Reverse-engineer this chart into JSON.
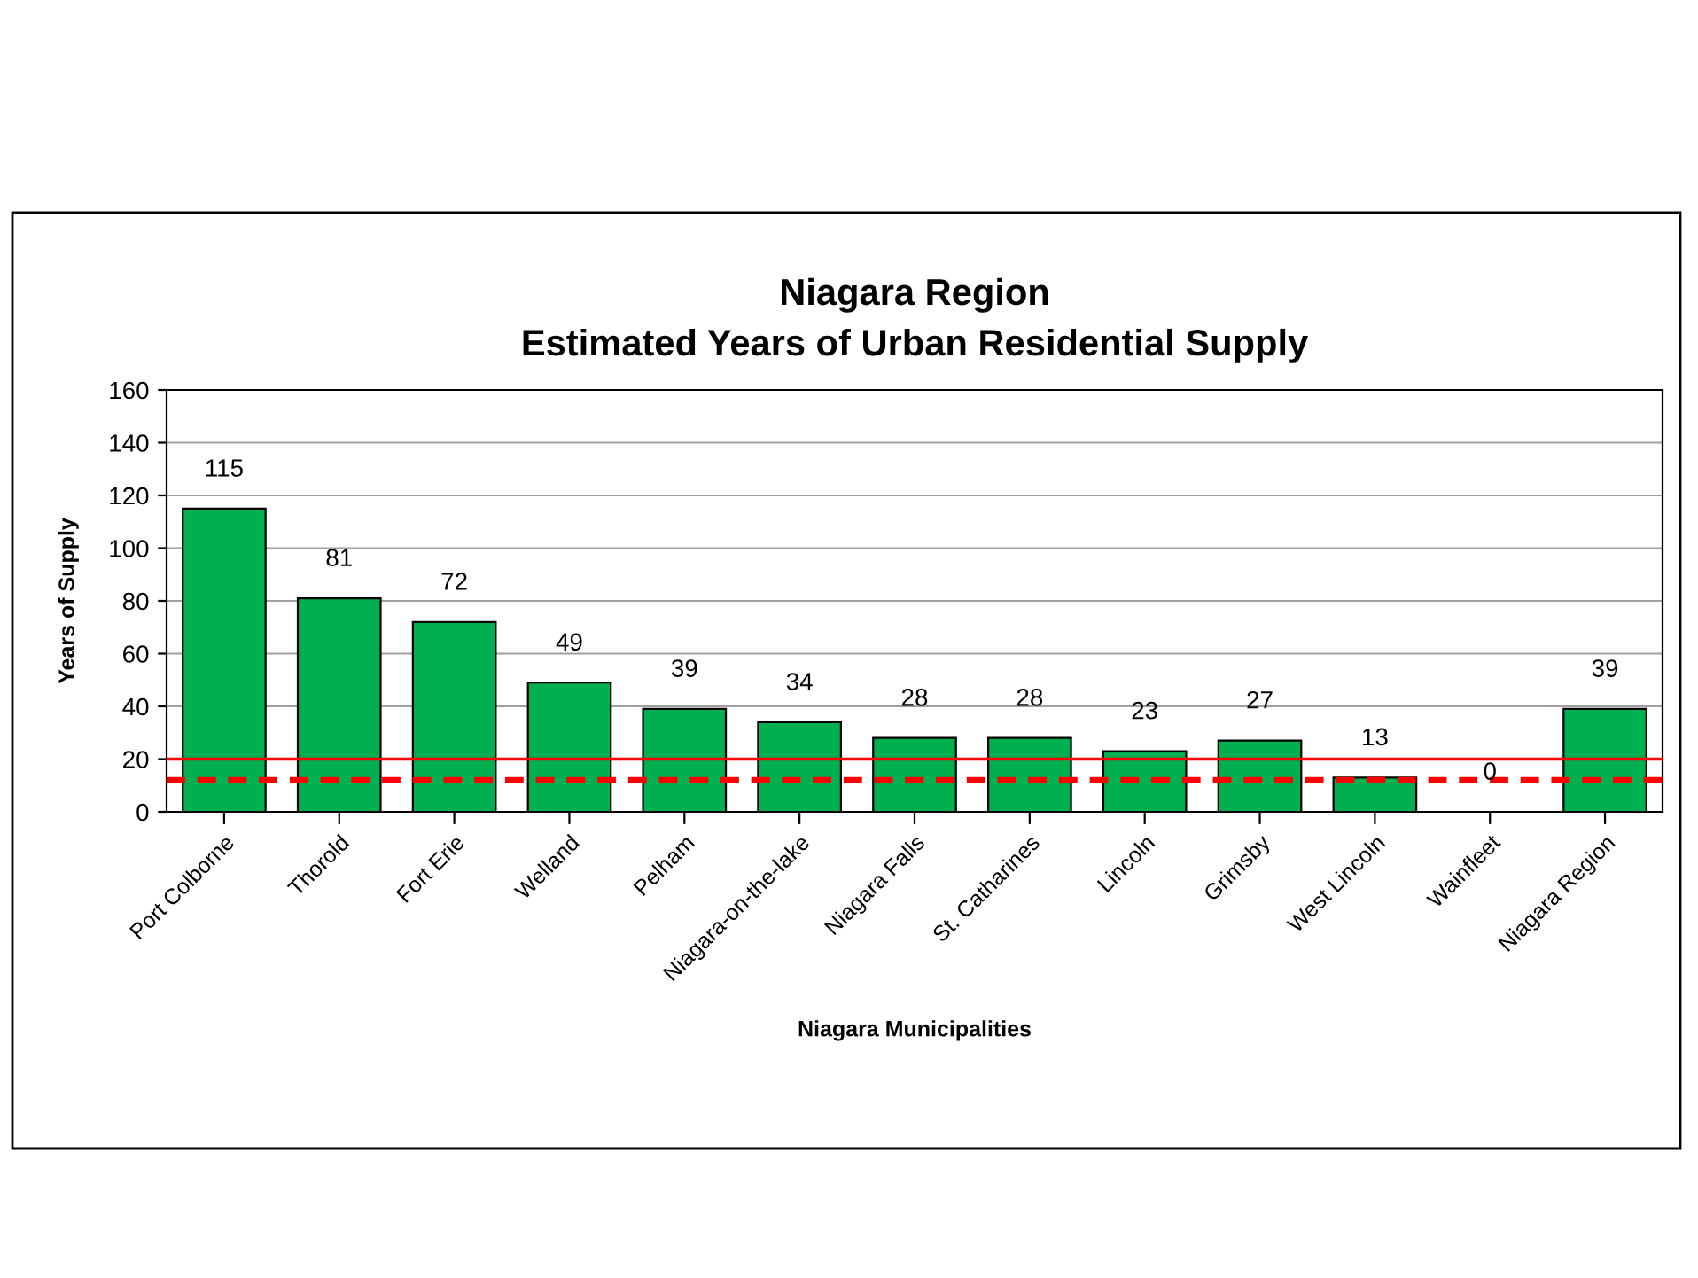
{
  "chart_data": {
    "type": "bar",
    "title": "Niagara Region\nEstimated Years of Urban Residential Supply",
    "xlabel": "Niagara Municipalities",
    "ylabel": "Years of Supply",
    "categories": [
      "Port Colborne",
      "Thorold",
      "Fort Erie",
      "Welland",
      "Pelham",
      "Niagara-on-the-lake",
      "Niagara Falls",
      "St. Catharines",
      "Lincoln",
      "Grimsby",
      "West Lincoln",
      "Wainfleet",
      "Niagara Region"
    ],
    "values": [
      115,
      81,
      72,
      49,
      39,
      34,
      28,
      28,
      23,
      27,
      13,
      0,
      39
    ],
    "color": "#00b050",
    "data_labels": true,
    "ylim": [
      0,
      160
    ],
    "yticks": [
      0,
      20,
      40,
      60,
      80,
      100,
      120,
      140,
      160
    ],
    "grid": "y",
    "ref_lines": [
      {
        "axis": "y",
        "value": 20,
        "color": "#ff0000",
        "line_style": "solid"
      },
      {
        "axis": "y",
        "value": 12,
        "color": "#ff0000",
        "line_style": "dashed"
      }
    ]
  }
}
